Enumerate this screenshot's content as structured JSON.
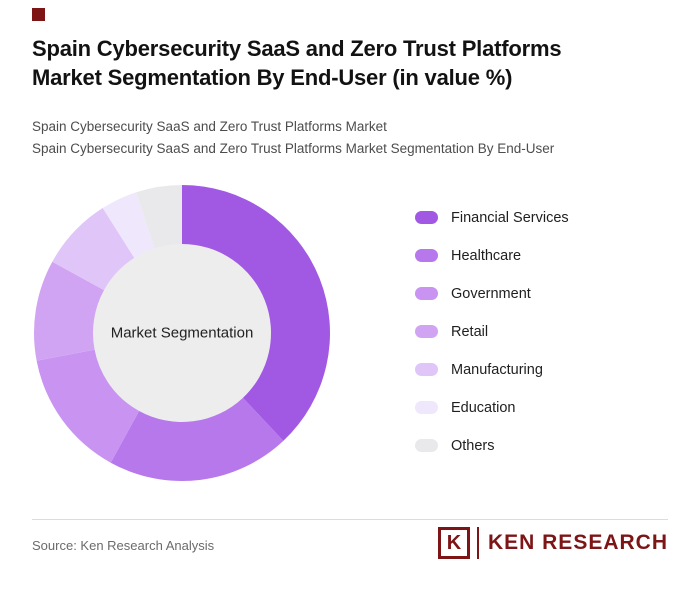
{
  "brand_color": "#7D1517",
  "background_color": "#FFFFFF",
  "header": {
    "title_lines": [
      "Spain Cybersecurity SaaS and Zero Trust Platforms",
      "Market Segmentation By End-User (in value %)"
    ],
    "subtitle_lines": [
      "Spain Cybersecurity SaaS and Zero Trust Platforms Market",
      "Spain Cybersecurity SaaS and Zero Trust Platforms Market Segmentation By End-User"
    ]
  },
  "chart_data": {
    "type": "pie",
    "variant": "donut",
    "title": "Spain Cybersecurity SaaS and Zero Trust Platforms Market Segmentation By End-User (in value %)",
    "center_label": "Market Segmentation",
    "center_fill": "#EDEDED",
    "start_angle_deg": 0,
    "direction": "clockwise",
    "legend_position": "right",
    "data_labels_shown": false,
    "categories": [
      "Financial Services",
      "Healthcare",
      "Government",
      "Retail",
      "Manufacturing",
      "Education",
      "Others"
    ],
    "values": [
      38,
      20,
      14,
      11,
      8,
      4,
      5
    ],
    "colors": [
      "#A159E4",
      "#B678EB",
      "#C893F1",
      "#D0A4F3",
      "#E0C6F8",
      "#EFE7FC",
      "#E9E9EB"
    ]
  },
  "footer": {
    "source": "Source: Ken Research Analysis",
    "logo": {
      "k": "K",
      "text": "KEN RESEARCH"
    }
  }
}
